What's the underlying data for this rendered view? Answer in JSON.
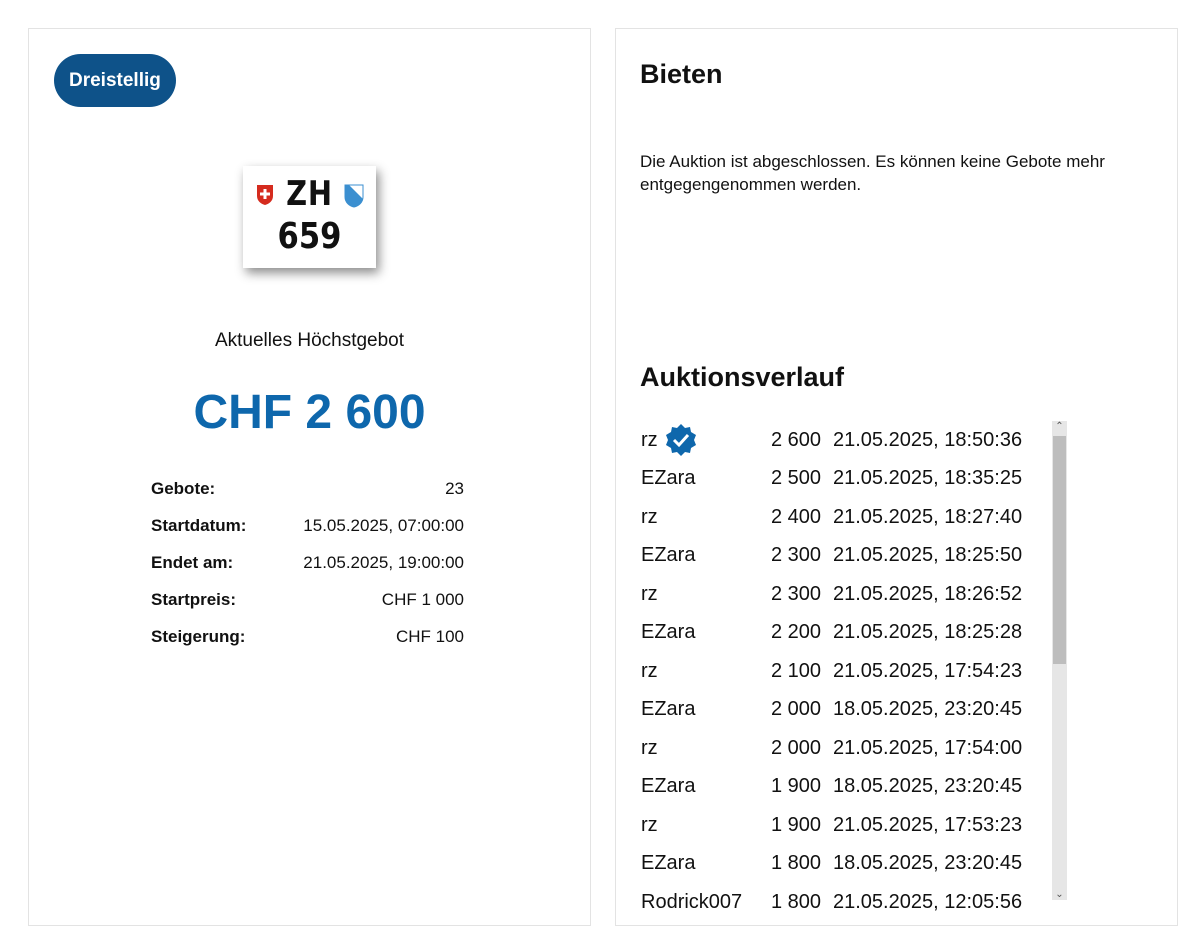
{
  "left": {
    "category_badge": "Dreistellig",
    "plate": {
      "canton": "ZH",
      "number": "659"
    },
    "current_bid_label": "Aktuelles Höchstgebot",
    "current_bid": "CHF 2 600",
    "details": [
      {
        "label": "Gebote:",
        "value": "23"
      },
      {
        "label": "Startdatum:",
        "value": "15.05.2025, 07:00:00"
      },
      {
        "label": "Endet am:",
        "value": "21.05.2025, 19:00:00"
      },
      {
        "label": "Startpreis:",
        "value": "CHF 1 000"
      },
      {
        "label": "Steigerung:",
        "value": "CHF 100"
      }
    ]
  },
  "right": {
    "bid_title": "Bieten",
    "closed_message": "Die Auktion ist abgeschlossen. Es können keine Gebote mehr entgegengenommen werden.",
    "history_title": "Auktionsverlauf",
    "history": [
      {
        "user": "rz",
        "amount": "2 600",
        "time": "21.05.2025, 18:50:36",
        "verified": true
      },
      {
        "user": "EZara",
        "amount": "2 500",
        "time": "21.05.2025, 18:35:25"
      },
      {
        "user": "rz",
        "amount": "2 400",
        "time": "21.05.2025, 18:27:40"
      },
      {
        "user": "EZara",
        "amount": "2 300",
        "time": "21.05.2025, 18:25:50"
      },
      {
        "user": "rz",
        "amount": "2 300",
        "time": "21.05.2025, 18:26:52"
      },
      {
        "user": "EZara",
        "amount": "2 200",
        "time": "21.05.2025, 18:25:28"
      },
      {
        "user": "rz",
        "amount": "2 100",
        "time": "21.05.2025, 17:54:23"
      },
      {
        "user": "EZara",
        "amount": "2 000",
        "time": "18.05.2025, 23:20:45"
      },
      {
        "user": "rz",
        "amount": "2 000",
        "time": "21.05.2025, 17:54:00"
      },
      {
        "user": "EZara",
        "amount": "1 900",
        "time": "18.05.2025, 23:20:45"
      },
      {
        "user": "rz",
        "amount": "1 900",
        "time": "21.05.2025, 17:53:23"
      },
      {
        "user": "EZara",
        "amount": "1 800",
        "time": "18.05.2025, 23:20:45"
      },
      {
        "user": "Rodrick007",
        "amount": "1 800",
        "time": "21.05.2025, 12:05:56"
      }
    ]
  },
  "colors": {
    "brand": "#0e5289",
    "price": "#0e67ac"
  }
}
